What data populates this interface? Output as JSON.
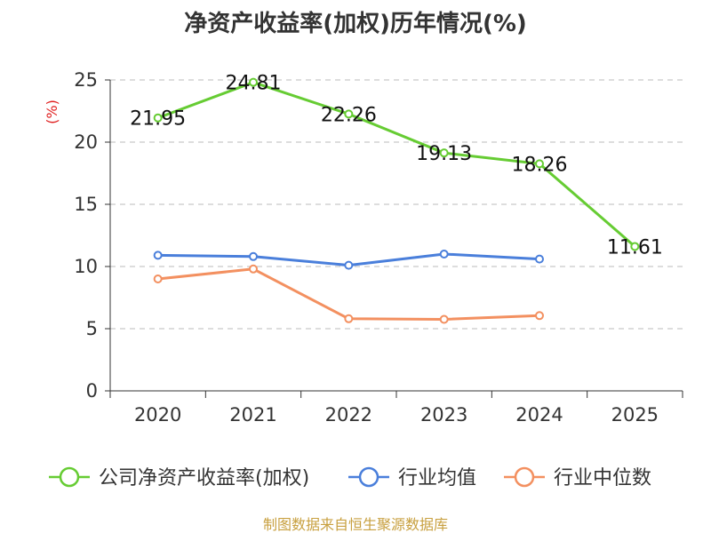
{
  "chart_data": {
    "type": "line",
    "title": "净资产收益率(加权)历年情况(%)",
    "ylabel": "(%)",
    "xlabel": "",
    "categories": [
      "2020",
      "2021",
      "2022",
      "2023",
      "2024",
      "2025"
    ],
    "ylim": [
      0,
      25
    ],
    "yticks": [
      0,
      5,
      10,
      15,
      20,
      25
    ],
    "grid": true,
    "legend_position": "bottom",
    "series": [
      {
        "name": "公司净资产收益率(加权)",
        "values": [
          21.95,
          24.81,
          22.26,
          19.13,
          18.26,
          11.61
        ],
        "color": "#66cc33",
        "labels": [
          "21.95",
          "24.81",
          "22.26",
          "19.13",
          "18.26",
          "11.61"
        ]
      },
      {
        "name": "行业均值",
        "values": [
          10.9,
          10.8,
          10.1,
          11.0,
          10.6,
          null
        ],
        "color": "#4a7fdb"
      },
      {
        "name": "行业中位数",
        "values": [
          9.0,
          9.8,
          5.8,
          5.75,
          6.05,
          null
        ],
        "color": "#f39060"
      }
    ]
  },
  "footer": {
    "source": "制图数据来自恒生聚源数据库"
  },
  "colors": {
    "title": "#333333",
    "axis": "#333333",
    "ylabel": "#e02020",
    "grid": "#bbbbbb",
    "footer": "#c8a040"
  }
}
